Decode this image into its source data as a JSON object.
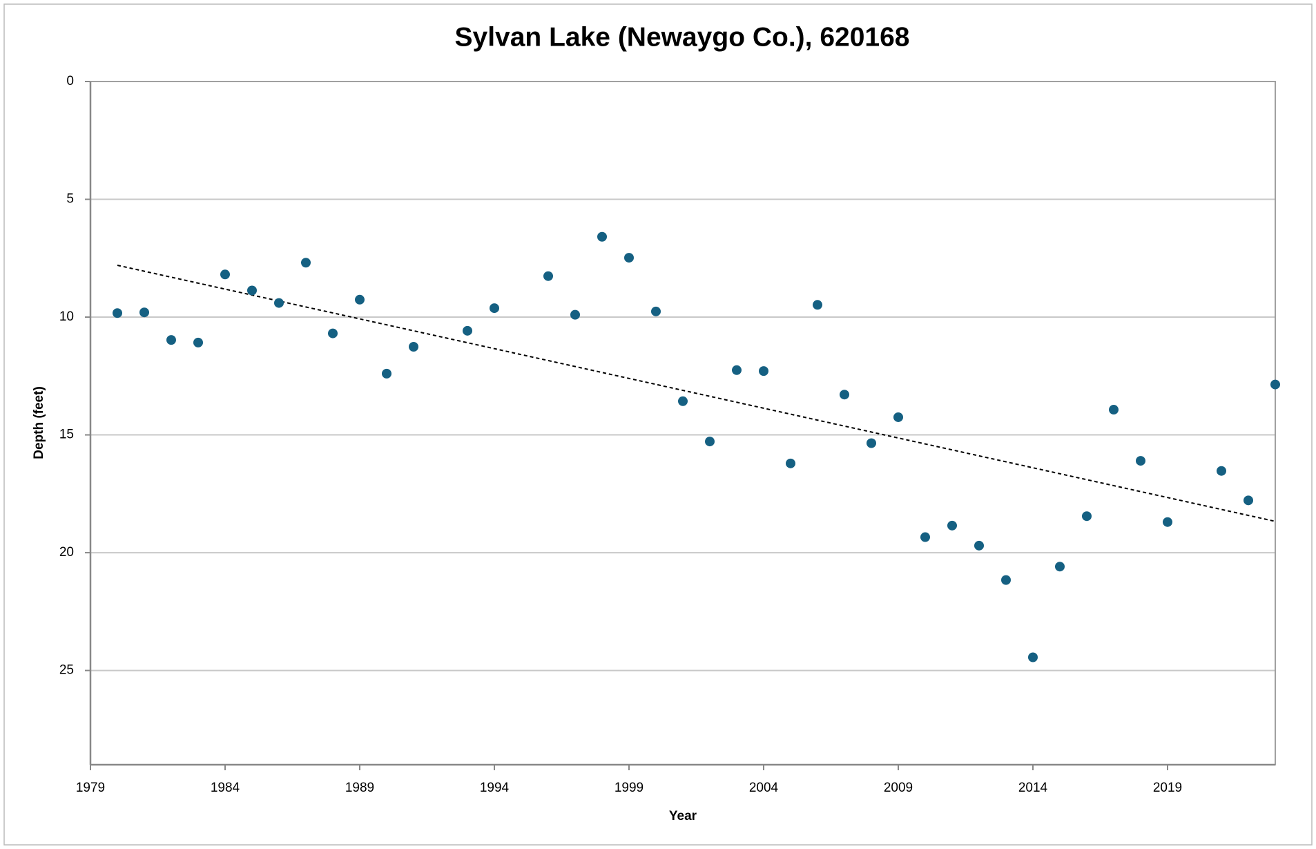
{
  "chart_data": {
    "type": "scatter",
    "title": "Sylvan Lake (Newaygo Co.), 620168",
    "x_label": "Year",
    "y_label": "Depth (feet)",
    "x": [
      1980,
      1981,
      1982,
      1983,
      1984,
      1985,
      1986,
      1987,
      1988,
      1989,
      1990,
      1991,
      1993,
      1994,
      1996,
      1997,
      1998,
      1999,
      2000,
      2001,
      2002,
      2003,
      2004,
      2005,
      2006,
      2007,
      2008,
      2009,
      2010,
      2011,
      2012,
      2013,
      2014,
      2015,
      2016,
      2017,
      2018,
      2019,
      2021,
      2022,
      2023
    ],
    "values": [
      9.83,
      9.8,
      10.97,
      11.08,
      8.19,
      8.87,
      9.4,
      7.69,
      10.69,
      9.26,
      12.4,
      11.26,
      10.58,
      9.62,
      8.26,
      9.9,
      6.59,
      7.48,
      9.76,
      13.57,
      15.28,
      12.25,
      12.29,
      16.21,
      9.48,
      13.29,
      15.35,
      14.25,
      19.34,
      18.85,
      19.7,
      21.16,
      24.44,
      20.59,
      18.45,
      13.93,
      16.1,
      18.7,
      16.53,
      17.78,
      12.86
    ],
    "color": "#156082",
    "trendline": {
      "x": [
        1980,
        2023
      ],
      "values": [
        7.8,
        18.67
      ],
      "color": "#000000"
    },
    "xlim": [
      1979,
      2023
    ],
    "xticks": [
      1979,
      1984,
      1989,
      1994,
      1999,
      2004,
      2009,
      2014,
      2019
    ],
    "ylim": [
      0,
      29
    ],
    "yticks": [
      0,
      5,
      10,
      15,
      20,
      25
    ],
    "y_inverted": true,
    "grid": true
  }
}
